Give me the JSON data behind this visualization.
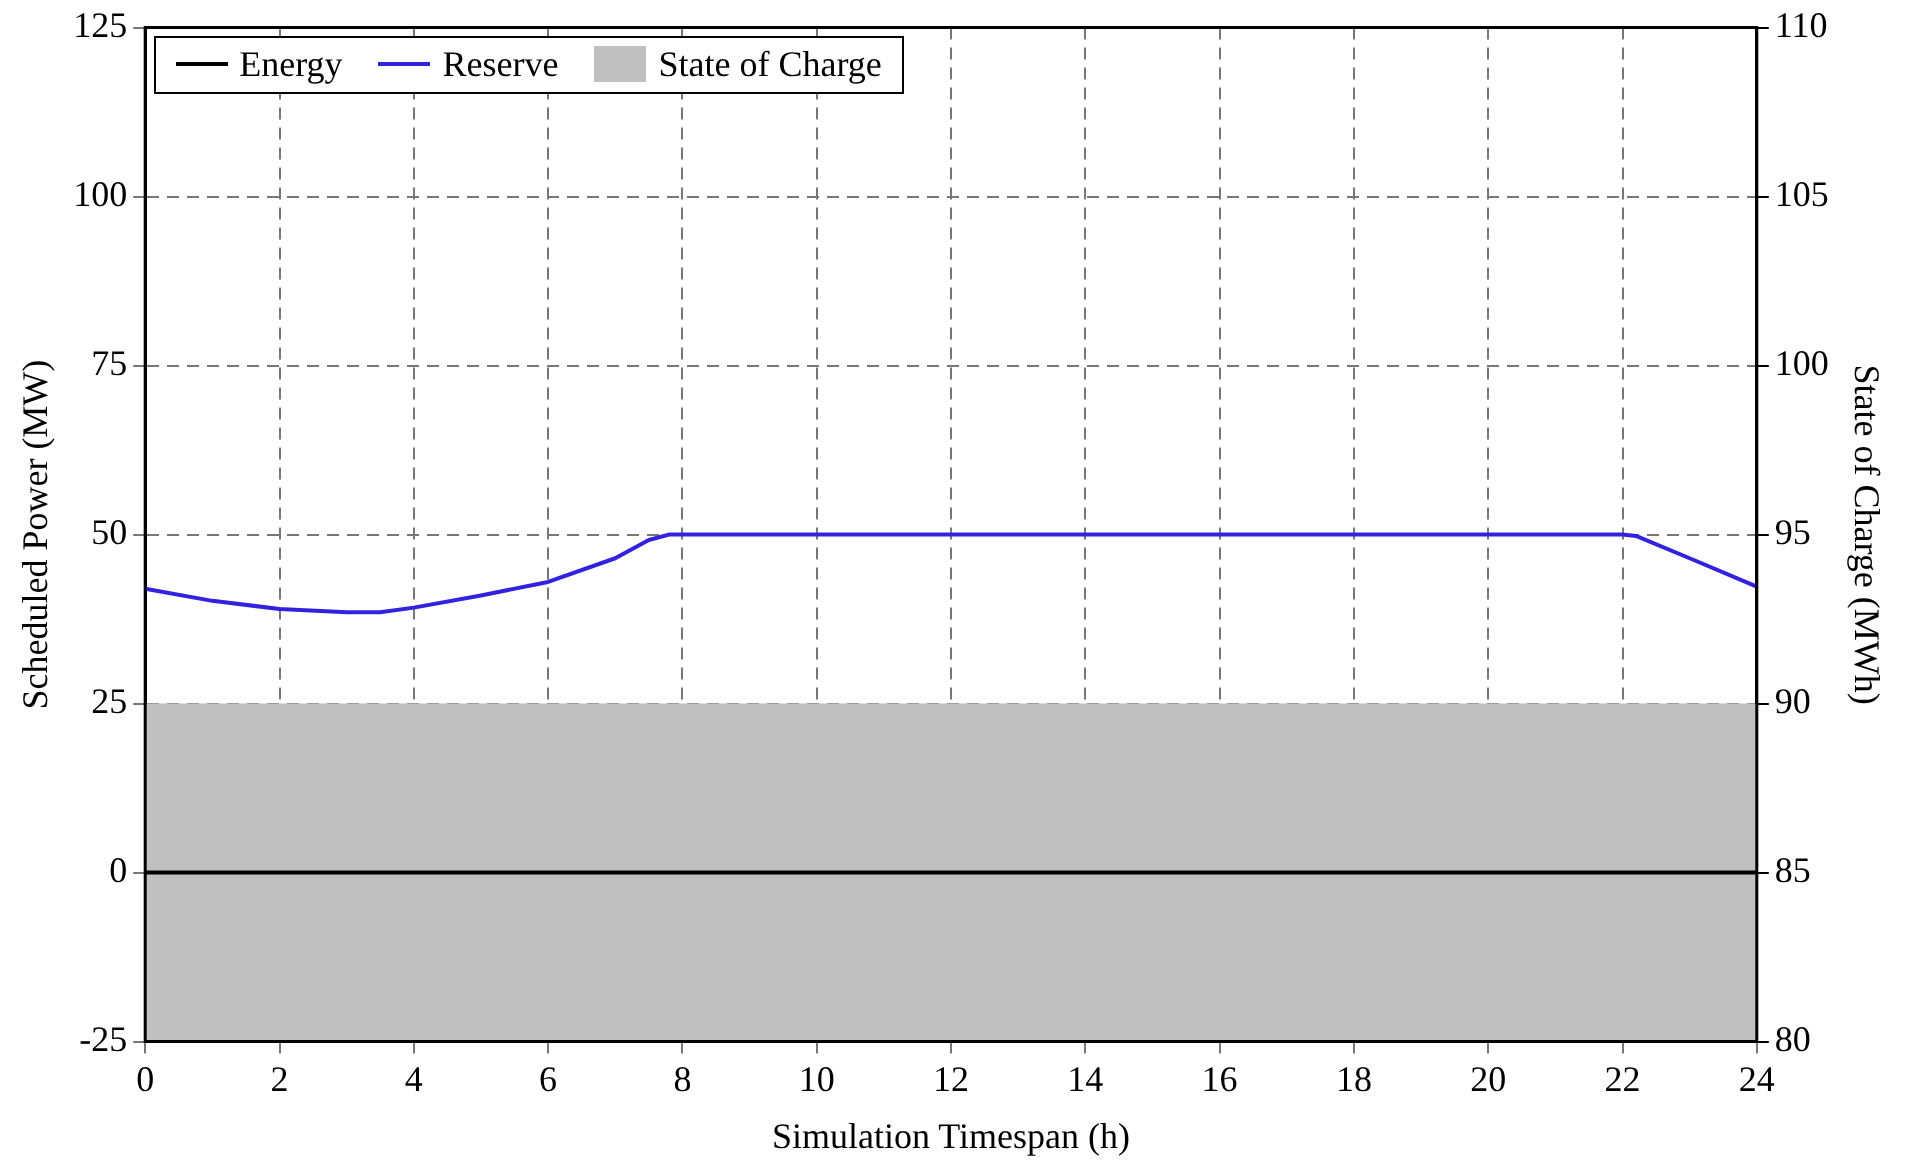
{
  "chart_data": {
    "type": "line",
    "xlabel": "Simulation Timespan (h)",
    "ylabel": "Scheduled Power (MW)",
    "y2label": "State of Charge (MWh)",
    "series": [
      {
        "name": "Energy",
        "color": "#000000",
        "x": [
          0,
          24
        ],
        "values": [
          0,
          0
        ]
      },
      {
        "name": "Reserve",
        "color": "#3322dd",
        "x": [
          0,
          1,
          2,
          3,
          3.5,
          4,
          5,
          6,
          7,
          7.5,
          7.8,
          22,
          22.2,
          23,
          24
        ],
        "values": [
          42,
          40.2,
          39,
          38.5,
          38.5,
          39.2,
          41,
          43,
          46.5,
          49.2,
          50,
          50,
          49.8,
          46.5,
          42.3
        ]
      },
      {
        "name": "State of Charge",
        "type": "area",
        "axis": "y2",
        "color": "#c0c0c0",
        "x": [
          0,
          24
        ],
        "values": [
          90,
          90
        ]
      }
    ],
    "xlim": [
      0,
      24
    ],
    "xticks": [
      0,
      2,
      4,
      6,
      8,
      10,
      12,
      14,
      16,
      18,
      20,
      22,
      24
    ],
    "ylim": [
      -25,
      125
    ],
    "yticks": [
      -25,
      0,
      25,
      50,
      75,
      100,
      125
    ],
    "y2lim": [
      80,
      110
    ],
    "y2ticks": [
      80,
      85,
      90,
      95,
      100,
      105,
      110
    ],
    "grid": true,
    "legend": "top left",
    "marker": "none",
    "line_style": "solid"
  }
}
